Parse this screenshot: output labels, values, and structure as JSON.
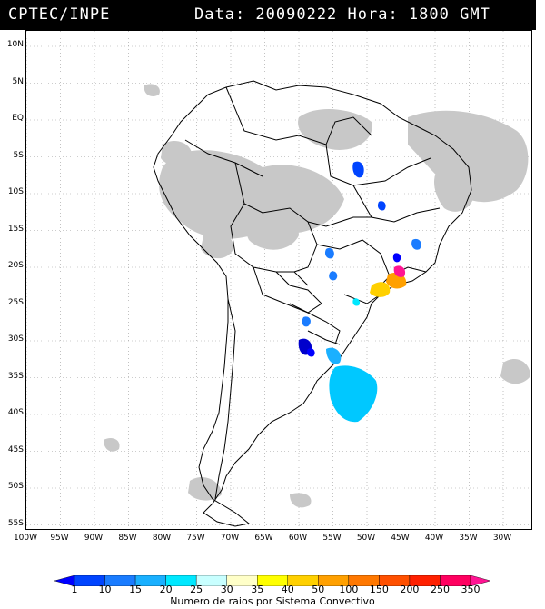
{
  "header": {
    "agency": "CPTEC/INPE",
    "datetime": "Data: 20090222 Hora: 1800 GMT"
  },
  "map": {
    "lat_labels": [
      "10N",
      "5N",
      "EQ",
      "5S",
      "10S",
      "15S",
      "20S",
      "25S",
      "30S",
      "35S",
      "40S",
      "45S",
      "50S",
      "55S"
    ],
    "lon_labels": [
      "100W",
      "95W",
      "90W",
      "85W",
      "80W",
      "75W",
      "70W",
      "65W",
      "60W",
      "55W",
      "50W",
      "45W",
      "40W",
      "35W",
      "30W"
    ],
    "cloud_color": "#c8c8c8",
    "border_color": "#000000"
  },
  "legend": {
    "title": "Numero de raios por Sistema Convectivo",
    "ticks": [
      "1",
      "10",
      "15",
      "20",
      "25",
      "30",
      "35",
      "40",
      "50",
      "100",
      "150",
      "200",
      "250",
      "350"
    ],
    "colors": [
      "#0000ff",
      "#0044ff",
      "#1a7cff",
      "#1ab0ff",
      "#00e8ff",
      "#c8ffff",
      "#ffffc8",
      "#ffff00",
      "#ffd000",
      "#ffa000",
      "#ff7800",
      "#ff5000",
      "#ff2000",
      "#ff0060",
      "#ff1493"
    ]
  }
}
